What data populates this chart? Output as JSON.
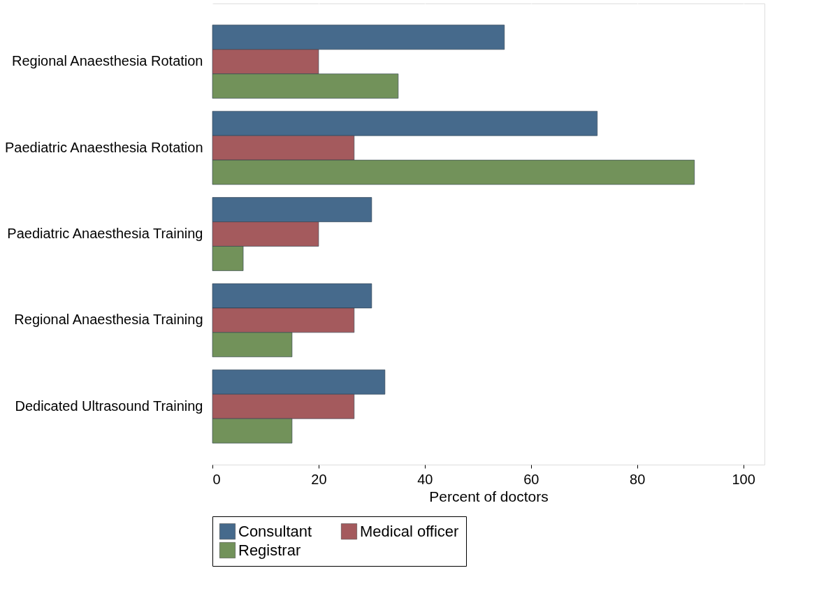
{
  "chart_data": {
    "type": "bar",
    "orientation": "horizontal",
    "xlabel": "Percent of doctors",
    "categories": [
      "Regional Anaesthesia Rotation",
      "Paediatric Anaesthesia Rotation",
      "Paediatric Anaesthesia Training",
      "Regional Anaesthesia Training",
      "Dedicated Ultrasound Training"
    ],
    "series": [
      {
        "name": "Consultant",
        "color": "#466a8c",
        "values": [
          55,
          72.5,
          30,
          30,
          32.5
        ]
      },
      {
        "name": "Medical officer",
        "color": "#a45a5d",
        "values": [
          20,
          26.7,
          20,
          26.7,
          26.7
        ]
      },
      {
        "name": "Registrar",
        "color": "#72925a",
        "values": [
          35,
          90.8,
          5.8,
          15,
          15
        ]
      }
    ],
    "xlim": [
      0,
      104
    ],
    "xticks": [
      0,
      20,
      40,
      60,
      80,
      100
    ],
    "grid": "x",
    "legend": "bottom"
  }
}
